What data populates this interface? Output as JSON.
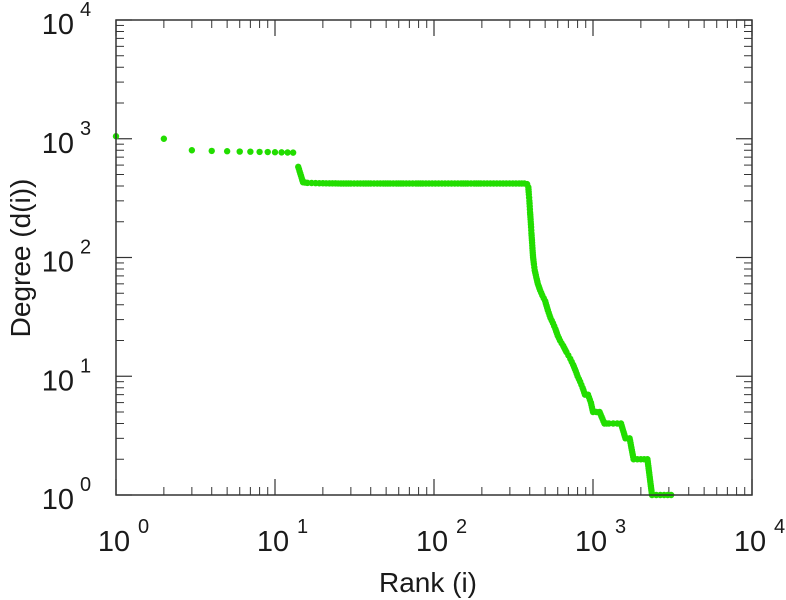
{
  "chart_data": {
    "type": "scatter",
    "xlabel": "Rank (i)",
    "ylabel": "Degree (d(i))",
    "xscale": "log",
    "yscale": "log",
    "xlim": [
      1,
      10000
    ],
    "ylim": [
      1,
      10000
    ],
    "grid": false,
    "marker_color": "#22dd00",
    "x_ticks": [
      {
        "base": "10",
        "exp": "0"
      },
      {
        "base": "10",
        "exp": "1"
      },
      {
        "base": "10",
        "exp": "2"
      },
      {
        "base": "10",
        "exp": "3"
      },
      {
        "base": "10",
        "exp": "4"
      }
    ],
    "y_ticks": [
      {
        "base": "10",
        "exp": "0"
      },
      {
        "base": "10",
        "exp": "1"
      },
      {
        "base": "10",
        "exp": "2"
      },
      {
        "base": "10",
        "exp": "3"
      },
      {
        "base": "10",
        "exp": "4"
      }
    ],
    "series": [
      {
        "points": [
          [
            1,
            1050
          ],
          [
            2,
            1000
          ],
          [
            3,
            800
          ],
          [
            4,
            790
          ],
          [
            5,
            785
          ],
          [
            6,
            780
          ],
          [
            7,
            778
          ],
          [
            8,
            775
          ],
          [
            9,
            773
          ],
          [
            10,
            770
          ],
          [
            11,
            768
          ],
          [
            12,
            766
          ],
          [
            13,
            764
          ],
          [
            14,
            580
          ],
          [
            15,
            430
          ],
          [
            16,
            425
          ],
          [
            17,
            424
          ],
          [
            18,
            423
          ],
          [
            19,
            422
          ],
          [
            20,
            422
          ],
          [
            22,
            421
          ],
          [
            24,
            421
          ],
          [
            26,
            420
          ],
          [
            28,
            420
          ],
          [
            30,
            420
          ],
          [
            33,
            420
          ],
          [
            36,
            420
          ],
          [
            40,
            420
          ],
          [
            44,
            420
          ],
          [
            48,
            420
          ],
          [
            53,
            420
          ],
          [
            58,
            420
          ],
          [
            64,
            420
          ],
          [
            70,
            420
          ],
          [
            77,
            420
          ],
          [
            85,
            420
          ],
          [
            93,
            420
          ],
          [
            102,
            420
          ],
          [
            112,
            420
          ],
          [
            123,
            420
          ],
          [
            135,
            420
          ],
          [
            148,
            420
          ],
          [
            163,
            420
          ],
          [
            179,
            420
          ],
          [
            197,
            420
          ],
          [
            216,
            420
          ],
          [
            237,
            420
          ],
          [
            260,
            420
          ],
          [
            285,
            420
          ],
          [
            313,
            420
          ],
          [
            343,
            420
          ],
          [
            370,
            420
          ],
          [
            385,
            415
          ],
          [
            392,
            390
          ],
          [
            395,
            340
          ],
          [
            398,
            300
          ],
          [
            400,
            270
          ],
          [
            402,
            240
          ],
          [
            405,
            210
          ],
          [
            408,
            180
          ],
          [
            410,
            160
          ],
          [
            413,
            140
          ],
          [
            416,
            120
          ],
          [
            420,
            100
          ],
          [
            425,
            88
          ],
          [
            430,
            78
          ],
          [
            440,
            68
          ],
          [
            450,
            60
          ],
          [
            465,
            53
          ],
          [
            480,
            48
          ],
          [
            500,
            43
          ],
          [
            520,
            36
          ],
          [
            540,
            31
          ],
          [
            560,
            28
          ],
          [
            580,
            25
          ],
          [
            600,
            22
          ],
          [
            620,
            20
          ],
          [
            650,
            18
          ],
          [
            680,
            16
          ],
          [
            700,
            15
          ],
          [
            720,
            14
          ],
          [
            750,
            12.5
          ],
          [
            780,
            11
          ],
          [
            800,
            10
          ],
          [
            830,
            9
          ],
          [
            860,
            8
          ],
          [
            890,
            7
          ],
          [
            930,
            7
          ],
          [
            970,
            6
          ],
          [
            1000,
            5
          ],
          [
            1050,
            5
          ],
          [
            1100,
            5
          ],
          [
            1180,
            4
          ],
          [
            1260,
            4
          ],
          [
            1340,
            4
          ],
          [
            1420,
            4
          ],
          [
            1500,
            4
          ],
          [
            1600,
            3
          ],
          [
            1700,
            3
          ],
          [
            1800,
            2
          ],
          [
            1900,
            2
          ],
          [
            2000,
            2
          ],
          [
            2100,
            2
          ],
          [
            2200,
            2
          ],
          [
            2350,
            1
          ],
          [
            2500,
            1
          ],
          [
            2650,
            1
          ],
          [
            2800,
            1
          ],
          [
            2950,
            1
          ],
          [
            3100,
            1
          ]
        ]
      }
    ]
  }
}
